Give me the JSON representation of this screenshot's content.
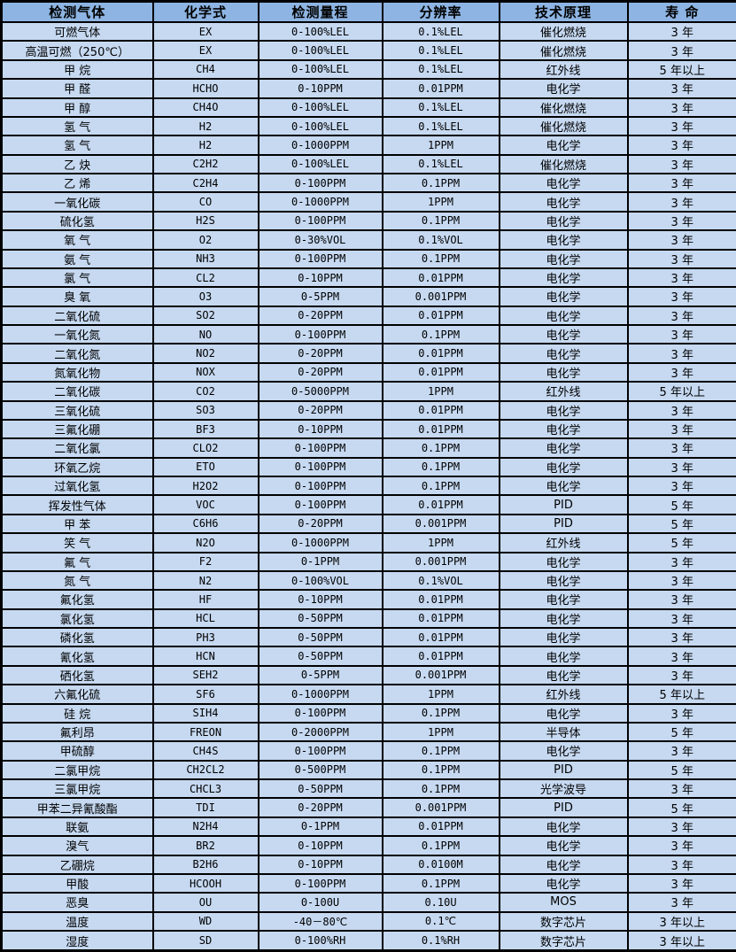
{
  "table": {
    "columns": [
      "检测气体",
      "化学式",
      "检测量程",
      "分辨率",
      "技术原理",
      "寿 命"
    ],
    "column_keys": [
      "gas-name",
      "chemical-formula",
      "detection-range",
      "resolution",
      "technology",
      "lifespan"
    ],
    "rows": [
      [
        "可燃气体",
        "EX",
        "0-100%LEL",
        "0.1%LEL",
        "催化燃烧",
        "3 年"
      ],
      [
        "高温可燃（250℃）",
        "EX",
        "0-100%LEL",
        "0.1%LEL",
        "催化燃烧",
        "3 年"
      ],
      [
        "甲 烷",
        "CH4",
        "0-100%LEL",
        "0.1%LEL",
        "红外线",
        "5 年以上"
      ],
      [
        "甲 醛",
        "HCHO",
        "0-10PPM",
        "0.01PPM",
        "电化学",
        "3 年"
      ],
      [
        "甲 醇",
        "CH4O",
        "0-100%LEL",
        "0.1%LEL",
        "催化燃烧",
        "3 年"
      ],
      [
        "氢 气",
        "H2",
        "0-100%LEL",
        "0.1%LEL",
        "催化燃烧",
        "3 年"
      ],
      [
        "氢 气",
        "H2",
        "0-1000PPM",
        "1PPM",
        "电化学",
        "3 年"
      ],
      [
        "乙 炔",
        "C2H2",
        "0-100%LEL",
        "0.1%LEL",
        "催化燃烧",
        "3 年"
      ],
      [
        "乙 烯",
        "C2H4",
        "0-100PPM",
        "0.1PPM",
        "电化学",
        "3 年"
      ],
      [
        "一氧化碳",
        "CO",
        "0-1000PPM",
        "1PPM",
        "电化学",
        "3 年"
      ],
      [
        "硫化氢",
        "H2S",
        "0-100PPM",
        "0.1PPM",
        "电化学",
        "3 年"
      ],
      [
        "氧 气",
        "O2",
        "0-30%VOL",
        "0.1%VOL",
        "电化学",
        "3 年"
      ],
      [
        "氨 气",
        "NH3",
        "0-100PPM",
        "0.1PPM",
        "电化学",
        "3 年"
      ],
      [
        "氯 气",
        "CL2",
        "0-10PPM",
        "0.01PPM",
        "电化学",
        "3 年"
      ],
      [
        "臭 氧",
        "O3",
        "0-5PPM",
        "0.001PPM",
        "电化学",
        "3 年"
      ],
      [
        "二氧化硫",
        "SO2",
        "0-20PPM",
        "0.01PPM",
        "电化学",
        "3 年"
      ],
      [
        "一氧化氮",
        "NO",
        "0-100PPM",
        "0.1PPM",
        "电化学",
        "3 年"
      ],
      [
        "二氧化氮",
        "NO2",
        "0-20PPM",
        "0.01PPM",
        "电化学",
        "3 年"
      ],
      [
        "氮氧化物",
        "NOX",
        "0-20PPM",
        "0.01PPM",
        "电化学",
        "3 年"
      ],
      [
        "二氧化碳",
        "CO2",
        "0-5000PPM",
        "1PPM",
        "红外线",
        "5 年以上"
      ],
      [
        "三氧化硫",
        "SO3",
        "0-20PPM",
        "0.01PPM",
        "电化学",
        "3 年"
      ],
      [
        "三氟化硼",
        "BF3",
        "0-10PPM",
        "0.01PPM",
        "电化学",
        "3 年"
      ],
      [
        "二氧化氯",
        "CLO2",
        "0-100PPM",
        "0.1PPM",
        "电化学",
        "3 年"
      ],
      [
        "环氧乙烷",
        "ETO",
        "0-100PPM",
        "0.1PPM",
        "电化学",
        "3 年"
      ],
      [
        "过氧化氢",
        "H2O2",
        "0-100PPM",
        "0.1PPM",
        "电化学",
        "3 年"
      ],
      [
        "挥发性气体",
        "VOC",
        "0-100PPM",
        "0.01PPM",
        "PID",
        "5 年"
      ],
      [
        "甲 苯",
        "C6H6",
        "0-20PPM",
        "0.001PPM",
        "PID",
        "5 年"
      ],
      [
        "笑 气",
        "N2O",
        "0-1000PPM",
        "1PPM",
        "红外线",
        "5 年"
      ],
      [
        "氟 气",
        "F2",
        "0-1PPM",
        "0.001PPM",
        "电化学",
        "3 年"
      ],
      [
        "氮 气",
        "N2",
        "0-100%VOL",
        "0.1%VOL",
        "电化学",
        "3 年"
      ],
      [
        "氟化氢",
        "HF",
        "0-10PPM",
        "0.01PPM",
        "电化学",
        "3 年"
      ],
      [
        "氯化氢",
        "HCL",
        "0-50PPM",
        "0.01PPM",
        "电化学",
        "3 年"
      ],
      [
        "磷化氢",
        "PH3",
        "0-50PPM",
        "0.01PPM",
        "电化学",
        "3 年"
      ],
      [
        "氰化氢",
        "HCN",
        "0-50PPM",
        "0.01PPM",
        "电化学",
        "3 年"
      ],
      [
        "硒化氢",
        "SEH2",
        "0-5PPM",
        "0.001PPM",
        "电化学",
        "3 年"
      ],
      [
        "六氟化硫",
        "SF6",
        "0-1000PPM",
        "1PPM",
        "红外线",
        "5 年以上"
      ],
      [
        "硅 烷",
        "SIH4",
        "0-100PPM",
        "0.1PPM",
        "电化学",
        "3 年"
      ],
      [
        "氟利昂",
        "FREON",
        "0-2000PPM",
        "1PPM",
        "半导体",
        "5 年"
      ],
      [
        "甲硫醇",
        "CH4S",
        "0-100PPM",
        "0.1PPM",
        "电化学",
        "3 年"
      ],
      [
        "二氯甲烷",
        "CH2CL2",
        "0-500PPM",
        "0.1PPM",
        "PID",
        "5 年"
      ],
      [
        "三氯甲烷",
        "CHCL3",
        "0-50PPM",
        "0.1PPM",
        "光学波导",
        "3 年"
      ],
      [
        "甲苯二异氰酸酯",
        "TDI",
        "0-20PPM",
        "0.001PPM",
        "PID",
        "5 年"
      ],
      [
        "联氨",
        "N2H4",
        "0-1PPM",
        "0.01PPM",
        "电化学",
        "3 年"
      ],
      [
        "溴气",
        "BR2",
        "0-10PPM",
        "0.1PPM",
        "电化学",
        "3 年"
      ],
      [
        "乙硼烷",
        "B2H6",
        "0-10PPM",
        "0.0100M",
        "电化学",
        "3 年"
      ],
      [
        "甲酸",
        "HCOOH",
        "0-100PPM",
        "0.1PPM",
        "电化学",
        "3 年"
      ],
      [
        "恶臭",
        "OU",
        "0-100U",
        "0.10U",
        "MOS",
        "3 年"
      ],
      [
        "温度",
        "WD",
        "-40－80℃",
        "0.1℃",
        "数字芯片",
        "3 年以上"
      ],
      [
        "湿度",
        "SD",
        "0-100%RH",
        "0.1%RH",
        "数字芯片",
        "3 年以上"
      ]
    ]
  },
  "colors": {
    "header_bg": "#8DB4E2",
    "row_bg": "#C6D9F1",
    "border": "#000000",
    "text": "#000000"
  }
}
